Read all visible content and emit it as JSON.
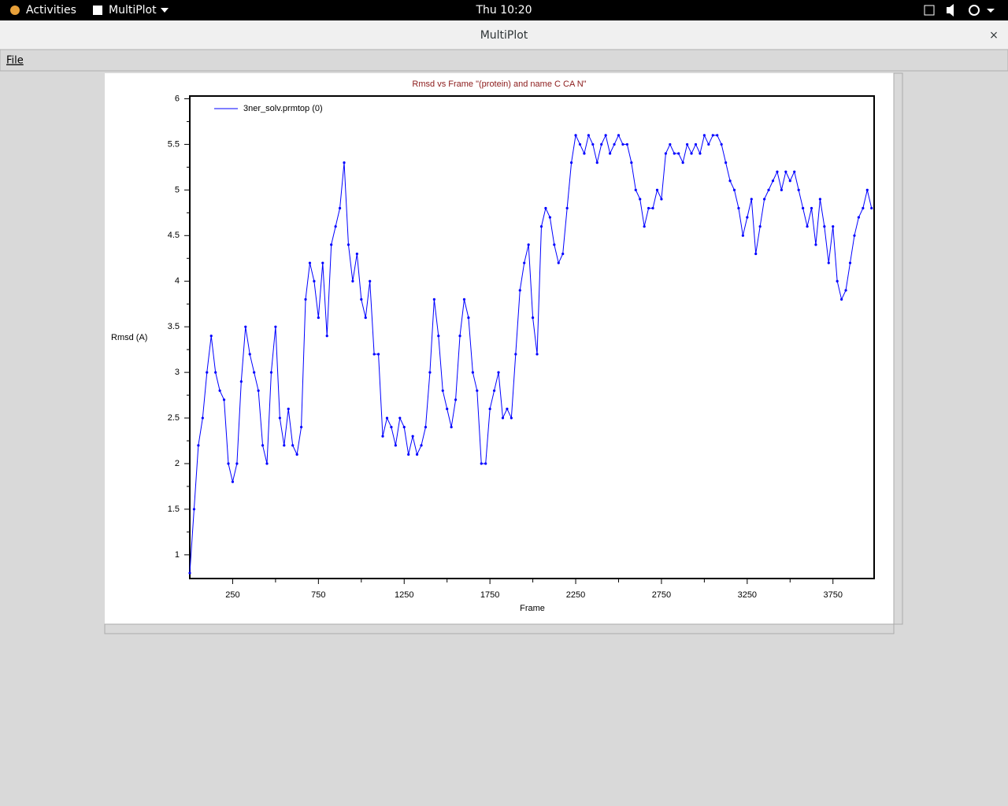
{
  "topbar": {
    "activities": "Activities",
    "app": "MultiPlot",
    "clock": "Thu 10:20"
  },
  "window": {
    "title": "MultiPlot",
    "menu": [
      "File"
    ]
  },
  "chart_data": {
    "type": "line",
    "title": "Rmsd vs Frame \"(protein) and name C CA N\"",
    "x_label": "Frame",
    "y_label": "Rmsd (A)",
    "xlim": [
      0,
      3990
    ],
    "ylim": [
      0.74,
      6.03
    ],
    "xticks": [
      250,
      750,
      1250,
      1750,
      2250,
      2750,
      3250,
      3750
    ],
    "xminor": [
      500,
      1000,
      1500,
      2000,
      2500,
      3000,
      3500
    ],
    "yticks": [
      1,
      1.5,
      2,
      2.5,
      3,
      3.5,
      4,
      4.5,
      5,
      5.5,
      6
    ],
    "yminor": [
      1.25,
      1.75,
      2.25,
      2.75,
      3.25,
      3.75,
      4.25,
      4.75,
      5.25,
      5.75
    ],
    "legend": "upper left",
    "series": [
      {
        "name": "3ner_solv.prmtop (0)",
        "color": "#0000ff",
        "x": [
          0,
          25,
          50,
          75,
          100,
          125,
          150,
          175,
          200,
          225,
          250,
          275,
          300,
          325,
          350,
          375,
          400,
          425,
          450,
          475,
          500,
          525,
          550,
          575,
          600,
          625,
          650,
          675,
          700,
          725,
          750,
          775,
          800,
          825,
          850,
          875,
          900,
          925,
          950,
          975,
          1000,
          1025,
          1050,
          1075,
          1100,
          1125,
          1150,
          1175,
          1200,
          1225,
          1250,
          1275,
          1300,
          1325,
          1350,
          1375,
          1400,
          1425,
          1450,
          1475,
          1500,
          1525,
          1550,
          1575,
          1600,
          1625,
          1650,
          1675,
          1700,
          1725,
          1750,
          1775,
          1800,
          1825,
          1850,
          1875,
          1900,
          1925,
          1950,
          1975,
          2000,
          2025,
          2050,
          2075,
          2100,
          2125,
          2150,
          2175,
          2200,
          2225,
          2250,
          2275,
          2300,
          2325,
          2350,
          2375,
          2400,
          2425,
          2450,
          2475,
          2500,
          2525,
          2550,
          2575,
          2600,
          2625,
          2650,
          2675,
          2700,
          2725,
          2750,
          2775,
          2800,
          2825,
          2850,
          2875,
          2900,
          2925,
          2950,
          2975,
          3000,
          3025,
          3050,
          3075,
          3100,
          3125,
          3150,
          3175,
          3200,
          3225,
          3250,
          3275,
          3300,
          3325,
          3350,
          3375,
          3400,
          3425,
          3450,
          3475,
          3500,
          3525,
          3550,
          3575,
          3600,
          3625,
          3650,
          3675,
          3700,
          3725,
          3750,
          3775,
          3800,
          3825,
          3850,
          3875,
          3900,
          3925,
          3950,
          3975
        ],
        "values": [
          0.8,
          1.5,
          2.2,
          2.5,
          3.0,
          3.4,
          3.0,
          2.8,
          2.7,
          2.0,
          1.8,
          2.0,
          2.9,
          3.5,
          3.2,
          3.0,
          2.8,
          2.2,
          2.0,
          3.0,
          3.5,
          2.5,
          2.2,
          2.6,
          2.2,
          2.1,
          2.4,
          3.8,
          4.2,
          4.0,
          3.6,
          4.2,
          3.4,
          4.4,
          4.6,
          4.8,
          5.3,
          4.4,
          4.0,
          4.3,
          3.8,
          3.6,
          4.0,
          3.2,
          3.2,
          2.3,
          2.5,
          2.4,
          2.2,
          2.5,
          2.4,
          2.1,
          2.3,
          2.1,
          2.2,
          2.4,
          3.0,
          3.8,
          3.4,
          2.8,
          2.6,
          2.4,
          2.7,
          3.4,
          3.8,
          3.6,
          3.0,
          2.8,
          2.0,
          2.0,
          2.6,
          2.8,
          3.0,
          2.5,
          2.6,
          2.5,
          3.2,
          3.9,
          4.2,
          4.4,
          3.6,
          3.2,
          4.6,
          4.8,
          4.7,
          4.4,
          4.2,
          4.3,
          4.8,
          5.3,
          5.6,
          5.5,
          5.4,
          5.6,
          5.5,
          5.3,
          5.5,
          5.6,
          5.4,
          5.5,
          5.6,
          5.5,
          5.5,
          5.3,
          5.0,
          4.9,
          4.6,
          4.8,
          4.8,
          5.0,
          4.9,
          5.4,
          5.5,
          5.4,
          5.4,
          5.3,
          5.5,
          5.4,
          5.5,
          5.4,
          5.6,
          5.5,
          5.6,
          5.6,
          5.5,
          5.3,
          5.1,
          5.0,
          4.8,
          4.5,
          4.7,
          4.9,
          4.3,
          4.6,
          4.9,
          5.0,
          5.1,
          5.2,
          5.0,
          5.2,
          5.1,
          5.2,
          5.0,
          4.8,
          4.6,
          4.8,
          4.4,
          4.9,
          4.6,
          4.2,
          4.6,
          4.0,
          3.8,
          3.9,
          4.2,
          4.5,
          4.7,
          4.8,
          5.0,
          4.8
        ]
      }
    ]
  }
}
